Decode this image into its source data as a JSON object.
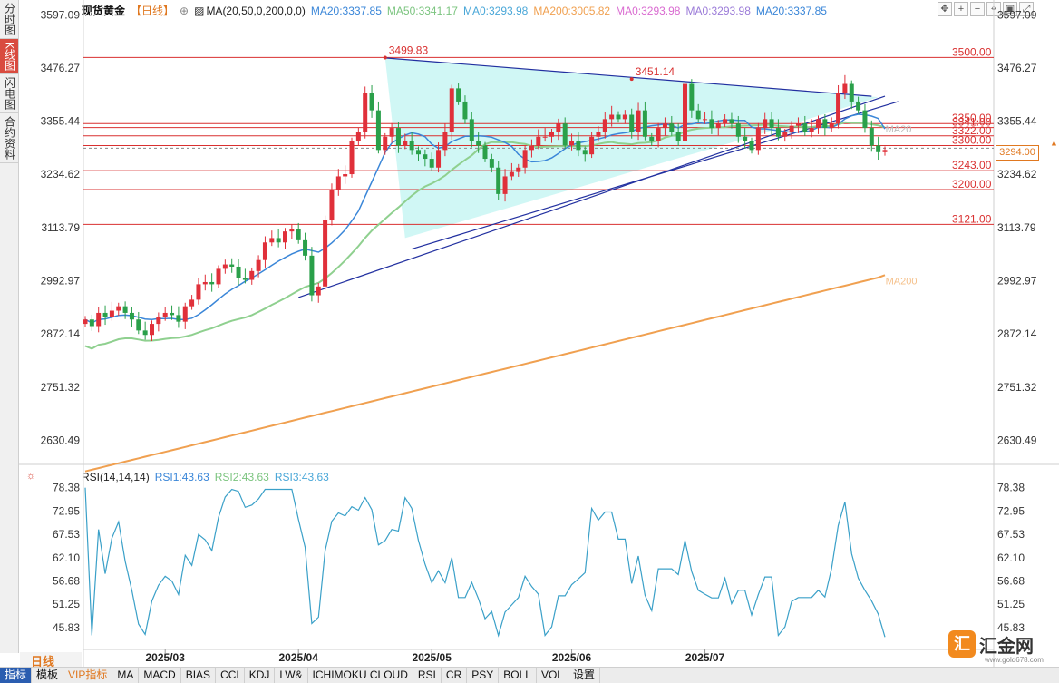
{
  "left_tabs": [
    {
      "label": "分时图",
      "active": false
    },
    {
      "label": "K线图",
      "active": true
    },
    {
      "label": "闪电图",
      "active": false
    },
    {
      "label": "合约资料",
      "active": false
    }
  ],
  "header": {
    "title": "现货黄金",
    "period": "【日线】",
    "period_icon": "⊕",
    "ma_icon": "▨",
    "ma_params": "MA(20,50,0,200,0,0)",
    "ma_values": [
      {
        "text": "MA20:3337.85",
        "color": "#3a86d8"
      },
      {
        "text": "MA50:3341.17",
        "color": "#7bc47f"
      },
      {
        "text": "MA0:3293.98",
        "color": "#4aa7d8"
      },
      {
        "text": "MA200:3005.82",
        "color": "#f0a050"
      },
      {
        "text": "MA0:3293.98",
        "color": "#d96ad0"
      },
      {
        "text": "MA0:3293.98",
        "color": "#9b7bd8"
      },
      {
        "text": "MA20:3337.85",
        "color": "#3a86d8"
      }
    ]
  },
  "toolbar_icons": [
    "move-icon",
    "zoom-in-icon",
    "zoom-out-icon",
    "crosshair-icon",
    "fullscreen-icon",
    "expand-icon"
  ],
  "rsi_header": {
    "params": "RSI(14,14,14)",
    "values": [
      {
        "text": "RSI1:43.63",
        "color": "#3a86d8"
      },
      {
        "text": "RSI2:43.63",
        "color": "#7bc47f"
      },
      {
        "text": "RSI3:43.63",
        "color": "#4aa7d8"
      }
    ]
  },
  "current_price": "3294.00",
  "period_label": "日线",
  "bottom_tabs": [
    {
      "label": "指标",
      "active": true
    },
    {
      "label": "模板"
    },
    {
      "label": "VIP指标",
      "vip": true
    },
    {
      "label": "MA"
    },
    {
      "label": "MACD"
    },
    {
      "label": "BIAS"
    },
    {
      "label": "CCI"
    },
    {
      "label": "KDJ"
    },
    {
      "label": "LW&"
    },
    {
      "label": "ICHIMOKU CLOUD"
    },
    {
      "label": "RSI"
    },
    {
      "label": "CR"
    },
    {
      "label": "PSY"
    },
    {
      "label": "BOLL"
    },
    {
      "label": "VOL"
    },
    {
      "label": "设置"
    }
  ],
  "logo": {
    "mark": "汇",
    "text": "汇金网",
    "sub": "www.gold678.com"
  },
  "chart_data": [
    {
      "type": "candlestick",
      "title": "现货黄金",
      "yticks": [
        3597.09,
        3476.27,
        3355.44,
        3234.62,
        3113.79,
        2992.97,
        2872.14,
        2751.32,
        2630.49
      ],
      "xticks": [
        "2025/03",
        "2025/04",
        "2025/05",
        "2025/06",
        "2025/07"
      ],
      "current_price": 3294.0,
      "horizontal_levels": [
        3500.0,
        3350.0,
        3341.0,
        3322.0,
        3300.0,
        3243.0,
        3200.0,
        3121.0
      ],
      "annotations": [
        {
          "label": "3499.83",
          "value": 3499.83
        },
        {
          "label": "3451.14",
          "value": 3451.14
        }
      ],
      "ma_labels": [
        "MA20",
        "MA200"
      ],
      "last_values": {
        "MA20": 3337.85,
        "MA50": 3341.17,
        "MA200": 3005.82
      },
      "closes": [
        2905,
        2890,
        2920,
        2910,
        2925,
        2935,
        2920,
        2905,
        2880,
        2870,
        2895,
        2910,
        2920,
        2915,
        2900,
        2935,
        2950,
        2985,
        2990,
        2985,
        3020,
        3030,
        3025,
        3000,
        2995,
        3015,
        3040,
        3080,
        3090,
        3080,
        3105,
        3110,
        3085,
        3050,
        2960,
        2980,
        3130,
        3200,
        3230,
        3235,
        3310,
        3330,
        3420,
        3380,
        3290,
        3320,
        3340,
        3300,
        3310,
        3290,
        3280,
        3270,
        3250,
        3290,
        3330,
        3430,
        3400,
        3360,
        3310,
        3300,
        3270,
        3250,
        3190,
        3230,
        3240,
        3250,
        3290,
        3300,
        3320,
        3320,
        3330,
        3350,
        3300,
        3310,
        3290,
        3280,
        3320,
        3330,
        3360,
        3370,
        3360,
        3370,
        3330,
        3380,
        3320,
        3310,
        3340,
        3350,
        3330,
        3310,
        3440,
        3380,
        3360,
        3360,
        3340,
        3350,
        3360,
        3350,
        3320,
        3310,
        3290,
        3340,
        3360,
        3340,
        3320,
        3330,
        3345,
        3350,
        3330,
        3340,
        3360,
        3340,
        3350,
        3420,
        3440,
        3400,
        3380,
        3340,
        3300,
        3285,
        3290
      ],
      "rsi": {
        "yticks": [
          78.38,
          72.95,
          67.53,
          62.1,
          56.68,
          51.25,
          45.83
        ],
        "last_value": 43.63
      }
    }
  ]
}
